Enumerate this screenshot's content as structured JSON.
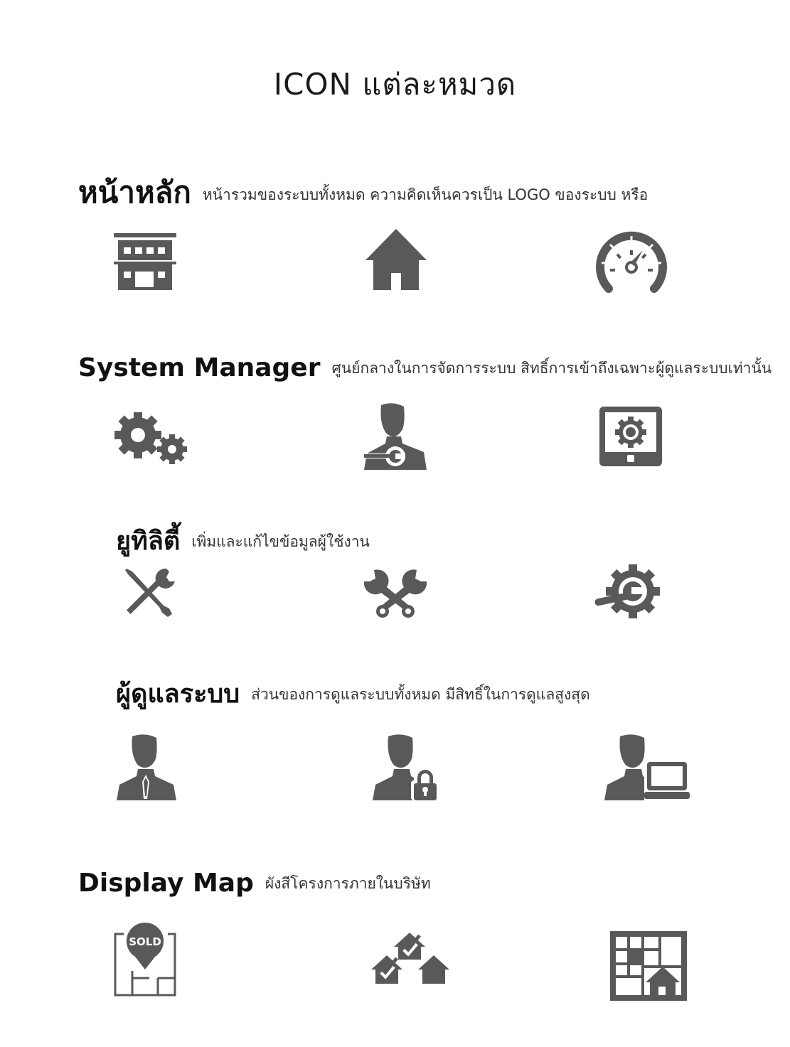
{
  "page_title": "ICON แต่ละหมวด",
  "icon_color": "#58595b",
  "sections": [
    {
      "heading": "หน้าหลัก",
      "description": "หน้ารวมของระบบทั้งหมด ความคิดเห็นควรเป็น LOGO ของระบบ หรือ",
      "icons": [
        "building-icon",
        "home-icon",
        "speedometer-icon"
      ]
    },
    {
      "heading": "System Manager",
      "description": "ศูนย์กลางในการจัดการระบบ สิทธิ์การเข้าถึงเฉพาะผู้ดูแลระบบเท่านั้น",
      "icons": [
        "gears-icon",
        "user-wrench-icon",
        "tablet-gear-icon"
      ]
    },
    {
      "heading": "ยูทิลิตี้",
      "description": "เพิ่มและแก้ไขข้อมูลผู้ใช้งาน",
      "icons": [
        "wrench-screwdriver-icon",
        "crossed-wrenches-icon",
        "gear-wrench-icon"
      ]
    },
    {
      "heading": "ผู้ดูแลระบบ",
      "description": "ส่วนของการดูแลระบบทั้งหมด มีสิทธิ์ในการดูแลสูงสุด",
      "icons": [
        "user-tie-icon",
        "user-lock-icon",
        "user-laptop-icon"
      ]
    },
    {
      "heading": "Display Map",
      "description": "ผังสีโครงการภายในบริษัท",
      "icons": [
        "sold-map-icon",
        "houses-check-icon",
        "site-plan-icon"
      ]
    }
  ],
  "sold_badge": "SOLD"
}
